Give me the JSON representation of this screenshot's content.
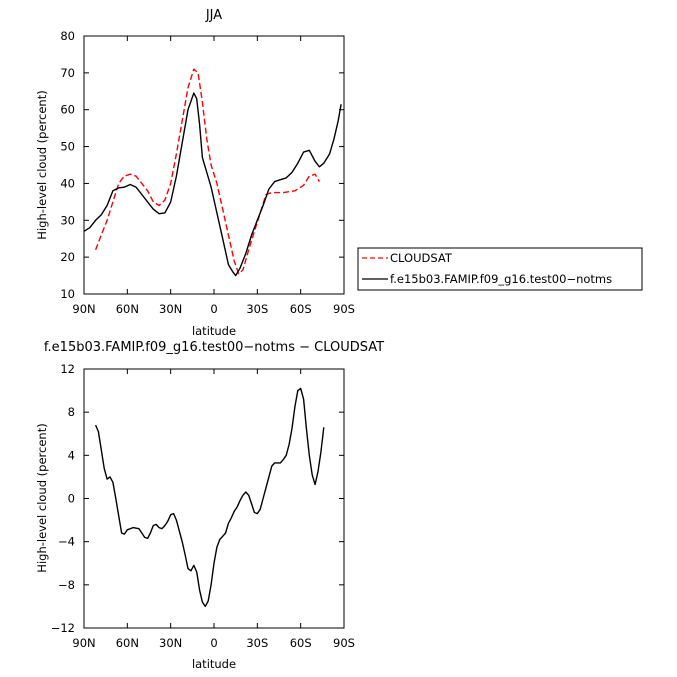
{
  "chart_data": [
    {
      "type": "line",
      "title": "JJA",
      "xlabel": "latitude",
      "ylabel": "High-level cloud (percent)",
      "xlim": [
        90,
        -90
      ],
      "ylim": [
        10,
        80
      ],
      "xticks": [
        90,
        60,
        30,
        0,
        -30,
        -60,
        -90
      ],
      "xtick_labels": [
        "90N",
        "60N",
        "30N",
        "0",
        "30S",
        "60S",
        "90S"
      ],
      "yticks": [
        10,
        20,
        30,
        40,
        50,
        60,
        70,
        80
      ],
      "ytick_labels": [
        "10",
        "20",
        "30",
        "40",
        "50",
        "60",
        "70",
        "80"
      ],
      "legend_position": "right",
      "series": [
        {
          "name": "CLOUDSAT",
          "color": "#ff0000",
          "dash": "dashed",
          "points": [
            [
              82,
              22
            ],
            [
              78,
              26
            ],
            [
              74,
              30
            ],
            [
              70,
              35
            ],
            [
              66,
              40
            ],
            [
              62,
              42
            ],
            [
              58,
              42.5
            ],
            [
              54,
              42
            ],
            [
              50,
              40
            ],
            [
              46,
              38
            ],
            [
              42,
              35
            ],
            [
              38,
              34
            ],
            [
              34,
              35.5
            ],
            [
              30,
              40
            ],
            [
              26,
              48
            ],
            [
              22,
              57
            ],
            [
              18,
              66
            ],
            [
              14,
              71
            ],
            [
              11,
              70
            ],
            [
              8,
              62
            ],
            [
              5,
              52
            ],
            [
              2,
              45
            ],
            [
              -2,
              40
            ],
            [
              -6,
              33
            ],
            [
              -10,
              26
            ],
            [
              -14,
              19
            ],
            [
              -17,
              15.5
            ],
            [
              -20,
              16.5
            ],
            [
              -24,
              22
            ],
            [
              -28,
              27
            ],
            [
              -32,
              32
            ],
            [
              -36,
              37
            ],
            [
              -40,
              37.5
            ],
            [
              -48,
              37.5
            ],
            [
              -56,
              38
            ],
            [
              -62,
              39.5
            ],
            [
              -66,
              42
            ],
            [
              -70,
              42.5
            ],
            [
              -73,
              40.5
            ]
          ]
        },
        {
          "name": "f.e15b03.FAMIP.f09_g16.test00−notms",
          "color": "#000000",
          "dash": "solid",
          "points": [
            [
              90,
              27
            ],
            [
              86,
              28
            ],
            [
              82,
              30
            ],
            [
              78,
              31.5
            ],
            [
              74,
              34
            ],
            [
              70,
              38
            ],
            [
              66,
              38.8
            ],
            [
              62,
              39
            ],
            [
              58,
              39.7
            ],
            [
              54,
              39
            ],
            [
              50,
              37
            ],
            [
              46,
              35
            ],
            [
              42,
              33
            ],
            [
              38,
              31.8
            ],
            [
              34,
              32
            ],
            [
              30,
              35
            ],
            [
              26,
              42
            ],
            [
              22,
              51
            ],
            [
              18,
              60
            ],
            [
              14,
              64.5
            ],
            [
              12,
              63
            ],
            [
              10,
              56
            ],
            [
              8,
              47
            ],
            [
              5,
              43
            ],
            [
              2,
              39
            ],
            [
              -2,
              32
            ],
            [
              -6,
              25
            ],
            [
              -10,
              18
            ],
            [
              -13,
              16
            ],
            [
              -15,
              15
            ],
            [
              -18,
              17
            ],
            [
              -22,
              21
            ],
            [
              -26,
              26
            ],
            [
              -30,
              30
            ],
            [
              -34,
              34
            ],
            [
              -38,
              38.5
            ],
            [
              -42,
              40.5
            ],
            [
              -46,
              41
            ],
            [
              -50,
              41.5
            ],
            [
              -54,
              43
            ],
            [
              -58,
              45.5
            ],
            [
              -62,
              48.5
            ],
            [
              -66,
              49
            ],
            [
              -70,
              46
            ],
            [
              -73,
              44.5
            ],
            [
              -76,
              45.5
            ],
            [
              -80,
              48
            ],
            [
              -83,
              52
            ],
            [
              -86,
              57
            ],
            [
              -88,
              61.5
            ]
          ]
        }
      ]
    },
    {
      "type": "line",
      "title": "f.e15b03.FAMIP.f09_g16.test00−notms − CLOUDSAT",
      "xlabel": "latitude",
      "ylabel": "High-level cloud (percent)",
      "xlim": [
        90,
        -90
      ],
      "ylim": [
        -12,
        12
      ],
      "xticks": [
        90,
        60,
        30,
        0,
        -30,
        -60,
        -90
      ],
      "xtick_labels": [
        "90N",
        "60N",
        "30N",
        "0",
        "30S",
        "60S",
        "90S"
      ],
      "yticks": [
        -12,
        -8,
        -4,
        0,
        4,
        8,
        12
      ],
      "ytick_labels": [
        "−12",
        "−8",
        "−4",
        "0",
        "4",
        "8",
        "12"
      ],
      "series": [
        {
          "color": "#000000",
          "dash": "solid",
          "points": [
            [
              82,
              6.8
            ],
            [
              80,
              6.2
            ],
            [
              78,
              4.5
            ],
            [
              76,
              2.8
            ],
            [
              74,
              1.8
            ],
            [
              72,
              2
            ],
            [
              70,
              1.5
            ],
            [
              68,
              0
            ],
            [
              66,
              -1.6
            ],
            [
              64,
              -3.2
            ],
            [
              62,
              -3.3
            ],
            [
              60,
              -2.9
            ],
            [
              56,
              -2.7
            ],
            [
              52,
              -2.8
            ],
            [
              50,
              -3.2
            ],
            [
              48,
              -3.6
            ],
            [
              46,
              -3.7
            ],
            [
              44,
              -3.2
            ],
            [
              42,
              -2.5
            ],
            [
              40,
              -2.4
            ],
            [
              38,
              -2.7
            ],
            [
              36,
              -2.8
            ],
            [
              34,
              -2.5
            ],
            [
              32,
              -2.1
            ],
            [
              30,
              -1.5
            ],
            [
              28,
              -1.4
            ],
            [
              26,
              -2
            ],
            [
              24,
              -3
            ],
            [
              22,
              -4
            ],
            [
              20,
              -5.2
            ],
            [
              18,
              -6.5
            ],
            [
              16,
              -6.7
            ],
            [
              14,
              -6.2
            ],
            [
              12,
              -6.8
            ],
            [
              10,
              -8.5
            ],
            [
              8,
              -9.6
            ],
            [
              6,
              -10
            ],
            [
              4,
              -9.5
            ],
            [
              2,
              -8
            ],
            [
              0,
              -6
            ],
            [
              -2,
              -4.5
            ],
            [
              -4,
              -3.8
            ],
            [
              -6,
              -3.5
            ],
            [
              -8,
              -3.2
            ],
            [
              -10,
              -2.3
            ],
            [
              -12,
              -1.8
            ],
            [
              -14,
              -1.2
            ],
            [
              -16,
              -0.8
            ],
            [
              -18,
              -0.2
            ],
            [
              -20,
              0.3
            ],
            [
              -22,
              0.6
            ],
            [
              -24,
              0.3
            ],
            [
              -26,
              -0.5
            ],
            [
              -28,
              -1.3
            ],
            [
              -30,
              -1.4
            ],
            [
              -32,
              -1
            ],
            [
              -34,
              0
            ],
            [
              -36,
              1
            ],
            [
              -38,
              2
            ],
            [
              -40,
              3
            ],
            [
              -42,
              3.3
            ],
            [
              -46,
              3.3
            ],
            [
              -48,
              3.6
            ],
            [
              -50,
              4
            ],
            [
              -52,
              5
            ],
            [
              -54,
              6.5
            ],
            [
              -56,
              8.5
            ],
            [
              -58,
              10
            ],
            [
              -60,
              10.2
            ],
            [
              -62,
              9.2
            ],
            [
              -64,
              6.5
            ],
            [
              -66,
              4
            ],
            [
              -68,
              2.2
            ],
            [
              -70,
              1.3
            ],
            [
              -72,
              2.5
            ],
            [
              -74,
              4.3
            ],
            [
              -76,
              6.6
            ]
          ]
        }
      ]
    }
  ]
}
